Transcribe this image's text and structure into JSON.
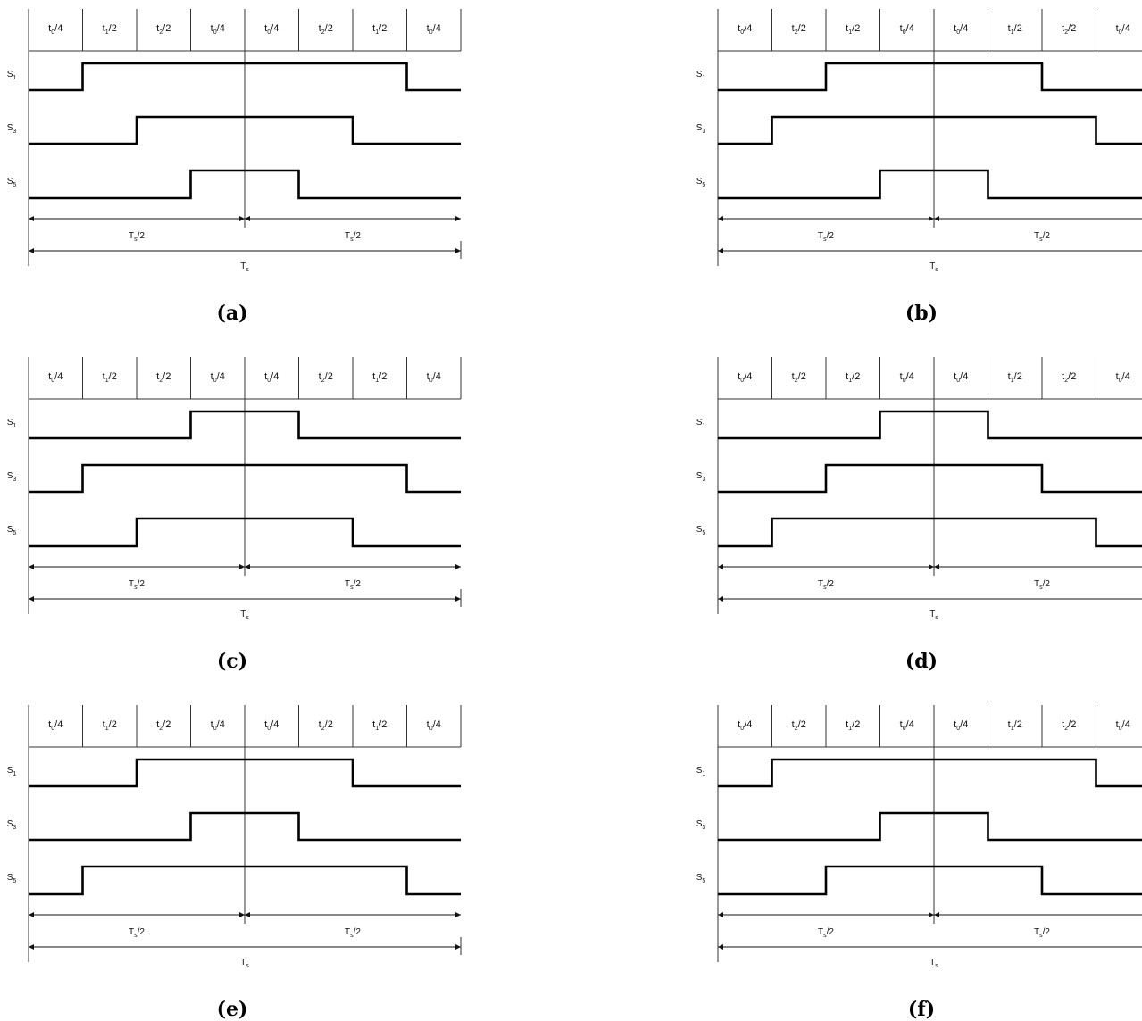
{
  "panels": [
    {
      "caption": "(a)",
      "headers": [
        [
          "t",
          "0",
          "/4"
        ],
        [
          "t",
          "1",
          "/2"
        ],
        [
          "t",
          "2",
          "/2"
        ],
        [
          "t",
          "0",
          "/4"
        ],
        [
          "t",
          "0",
          "/4"
        ],
        [
          "t",
          "2",
          "/2"
        ],
        [
          "t",
          "1",
          "/2"
        ],
        [
          "t",
          "0",
          "/4"
        ]
      ],
      "signals": [
        {
          "label": [
            "S",
            "1"
          ],
          "on_from_segment": 1,
          "on_to_segment": 7
        },
        {
          "label": [
            "S",
            "3"
          ],
          "on_from_segment": 2,
          "on_to_segment": 6
        },
        {
          "label": [
            "S",
            "5"
          ],
          "on_from_segment": 3,
          "on_to_segment": 5
        }
      ],
      "half_period_label": [
        "T",
        "s",
        "/2"
      ],
      "period_label": [
        "T",
        "s",
        ""
      ]
    },
    {
      "caption": "(b)",
      "headers": [
        [
          "t",
          "0",
          "/4"
        ],
        [
          "t",
          "2",
          "/2"
        ],
        [
          "t",
          "1",
          "/2"
        ],
        [
          "t",
          "0",
          "/4"
        ],
        [
          "t",
          "0",
          "/4"
        ],
        [
          "t",
          "1",
          "/2"
        ],
        [
          "t",
          "2",
          "/2"
        ],
        [
          "t",
          "0",
          "/4"
        ]
      ],
      "signals": [
        {
          "label": [
            "S",
            "1"
          ],
          "on_from_segment": 2,
          "on_to_segment": 6
        },
        {
          "label": [
            "S",
            "3"
          ],
          "on_from_segment": 1,
          "on_to_segment": 7
        },
        {
          "label": [
            "S",
            "5"
          ],
          "on_from_segment": 3,
          "on_to_segment": 5
        }
      ],
      "half_period_label": [
        "T",
        "s",
        "/2"
      ],
      "period_label": [
        "T",
        "s",
        ""
      ]
    },
    {
      "caption": "(c)",
      "headers": [
        [
          "t",
          "0",
          "/4"
        ],
        [
          "t",
          "1",
          "/2"
        ],
        [
          "t",
          "2",
          "/2"
        ],
        [
          "t",
          "0",
          "/4"
        ],
        [
          "t",
          "0",
          "/4"
        ],
        [
          "t",
          "2",
          "/2"
        ],
        [
          "t",
          "1",
          "/2"
        ],
        [
          "t",
          "0",
          "/4"
        ]
      ],
      "signals": [
        {
          "label": [
            "S",
            "1"
          ],
          "on_from_segment": 3,
          "on_to_segment": 5
        },
        {
          "label": [
            "S",
            "3"
          ],
          "on_from_segment": 1,
          "on_to_segment": 7
        },
        {
          "label": [
            "S",
            "5"
          ],
          "on_from_segment": 2,
          "on_to_segment": 6
        }
      ],
      "half_period_label": [
        "T",
        "s",
        "/2"
      ],
      "period_label": [
        "T",
        "s",
        ""
      ]
    },
    {
      "caption": "(d)",
      "headers": [
        [
          "t",
          "0",
          "/4"
        ],
        [
          "t",
          "2",
          "/2"
        ],
        [
          "t",
          "1",
          "/2"
        ],
        [
          "t",
          "0",
          "/4"
        ],
        [
          "t",
          "0",
          "/4"
        ],
        [
          "t",
          "1",
          "/2"
        ],
        [
          "t",
          "2",
          "/2"
        ],
        [
          "t",
          "0",
          "/4"
        ]
      ],
      "signals": [
        {
          "label": [
            "S",
            "1"
          ],
          "on_from_segment": 3,
          "on_to_segment": 5
        },
        {
          "label": [
            "S",
            "3"
          ],
          "on_from_segment": 2,
          "on_to_segment": 6
        },
        {
          "label": [
            "S",
            "5"
          ],
          "on_from_segment": 1,
          "on_to_segment": 7
        }
      ],
      "half_period_label": [
        "T",
        "s",
        "/2"
      ],
      "period_label": [
        "T",
        "s",
        ""
      ]
    },
    {
      "caption": "(e)",
      "headers": [
        [
          "t",
          "0",
          "/4"
        ],
        [
          "t",
          "1",
          "/2"
        ],
        [
          "t",
          "2",
          "/2"
        ],
        [
          "t",
          "0",
          "/4"
        ],
        [
          "t",
          "0",
          "/4"
        ],
        [
          "t",
          "2",
          "/2"
        ],
        [
          "t",
          "1",
          "/2"
        ],
        [
          "t",
          "0",
          "/4"
        ]
      ],
      "signals": [
        {
          "label": [
            "S",
            "1"
          ],
          "on_from_segment": 2,
          "on_to_segment": 6
        },
        {
          "label": [
            "S",
            "3"
          ],
          "on_from_segment": 3,
          "on_to_segment": 5
        },
        {
          "label": [
            "S",
            "5"
          ],
          "on_from_segment": 1,
          "on_to_segment": 7
        }
      ],
      "half_period_label": [
        "T",
        "s",
        "/2"
      ],
      "period_label": [
        "T",
        "s",
        ""
      ]
    },
    {
      "caption": "(f)",
      "headers": [
        [
          "t",
          "0",
          "/4"
        ],
        [
          "t",
          "2",
          "/2"
        ],
        [
          "t",
          "1",
          "/2"
        ],
        [
          "t",
          "0",
          "/4"
        ],
        [
          "t",
          "0",
          "/4"
        ],
        [
          "t",
          "1",
          "/2"
        ],
        [
          "t",
          "2",
          "/2"
        ],
        [
          "t",
          "0",
          "/4"
        ]
      ],
      "signals": [
        {
          "label": [
            "S",
            "1"
          ],
          "on_from_segment": 1,
          "on_to_segment": 7
        },
        {
          "label": [
            "S",
            "3"
          ],
          "on_from_segment": 3,
          "on_to_segment": 5
        },
        {
          "label": [
            "S",
            "5"
          ],
          "on_from_segment": 2,
          "on_to_segment": 6
        }
      ],
      "half_period_label": [
        "T",
        "s",
        "/2"
      ],
      "period_label": [
        "T",
        "s",
        ""
      ]
    }
  ]
}
